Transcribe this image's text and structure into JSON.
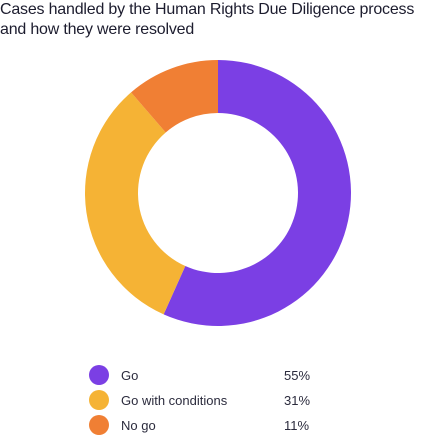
{
  "title_lines": [
    "Cases handled by the Human Rights Due Diligence process",
    "and how they were resolved"
  ],
  "chart_data": {
    "type": "pie",
    "title": "Cases handled by the Human Rights Due Diligence process and how they were resolved",
    "style": "donut",
    "categories": [
      "Go",
      "Go with conditions",
      "No go"
    ],
    "values": [
      55,
      31,
      11
    ],
    "unit": "%",
    "value_labels": [
      "55%",
      "31%",
      "11%"
    ],
    "colors": [
      "#7b3fe4",
      "#f5b335",
      "#f07f34"
    ],
    "legend": "bottom"
  }
}
